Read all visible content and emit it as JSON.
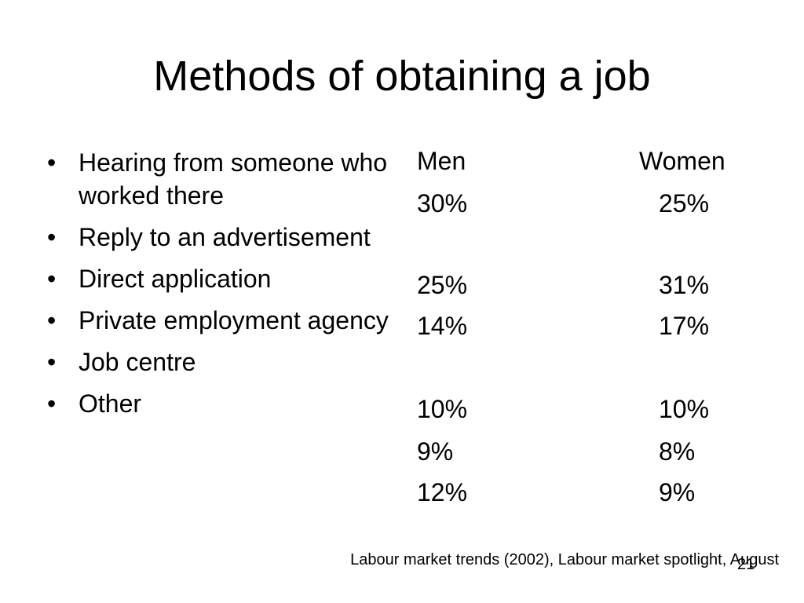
{
  "slide": {
    "title": "Methods of obtaining a job",
    "bullets": [
      "Hearing from someone who worked there",
      "Reply to an advertisement",
      "Direct application",
      "Private employment agency",
      "Job centre",
      "Other"
    ],
    "columns": {
      "men_header": "Men",
      "women_header": "Women"
    },
    "men_values": [
      "30%",
      "25%",
      "14%",
      "10%",
      "9%",
      "12%"
    ],
    "women_values": [
      "25%",
      "31%",
      "17%",
      "10%",
      "8%",
      "9%"
    ],
    "source": "Labour market trends (2002), Labour market spotlight, August",
    "page_number": "21",
    "bullet_symbol": "•"
  }
}
